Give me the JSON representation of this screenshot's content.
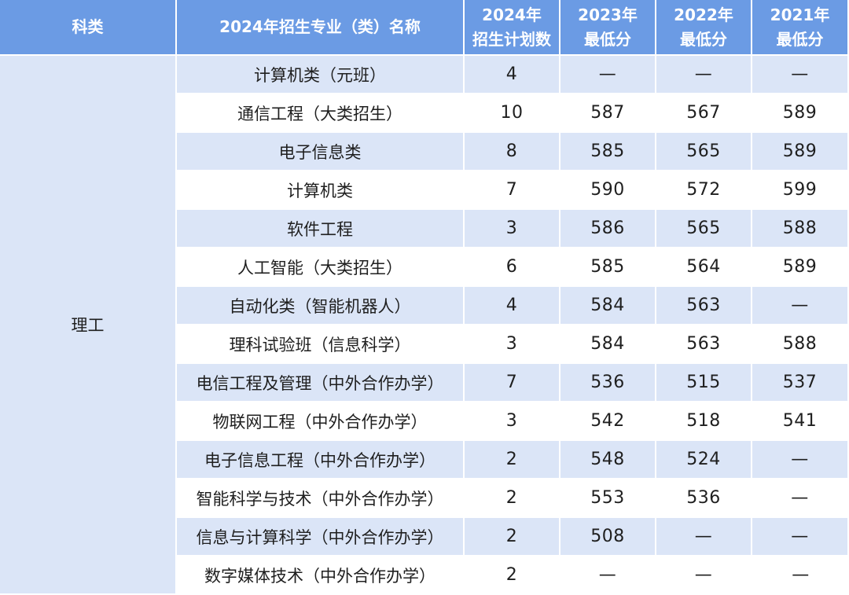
{
  "headers": {
    "category": "科类",
    "major": "2024年招生专业（类）名称",
    "plan_line1": "2024年",
    "plan_line2": "招生计划数",
    "y2023_line1": "2023年",
    "y2023_line2": "最低分",
    "y2022_line1": "2022年",
    "y2022_line2": "最低分",
    "y2021_line1": "2021年",
    "y2021_line2": "最低分"
  },
  "category": "理工",
  "rows": [
    {
      "major": "计算机类（元班）",
      "plan": "4",
      "y2023": "—",
      "y2022": "—",
      "y2021": "—"
    },
    {
      "major": "通信工程（大类招生）",
      "plan": "10",
      "y2023": "587",
      "y2022": "567",
      "y2021": "589"
    },
    {
      "major": "电子信息类",
      "plan": "8",
      "y2023": "585",
      "y2022": "565",
      "y2021": "589"
    },
    {
      "major": "计算机类",
      "plan": "7",
      "y2023": "590",
      "y2022": "572",
      "y2021": "599"
    },
    {
      "major": "软件工程",
      "plan": "3",
      "y2023": "586",
      "y2022": "565",
      "y2021": "588"
    },
    {
      "major": "人工智能（大类招生）",
      "plan": "6",
      "y2023": "585",
      "y2022": "564",
      "y2021": "589"
    },
    {
      "major": "自动化类（智能机器人）",
      "plan": "4",
      "y2023": "584",
      "y2022": "563",
      "y2021": "—"
    },
    {
      "major": "理科试验班（信息科学）",
      "plan": "3",
      "y2023": "584",
      "y2022": "563",
      "y2021": "588"
    },
    {
      "major": "电信工程及管理（中外合作办学）",
      "plan": "7",
      "y2023": "536",
      "y2022": "515",
      "y2021": "537"
    },
    {
      "major": "物联网工程（中外合作办学）",
      "plan": "3",
      "y2023": "542",
      "y2022": "518",
      "y2021": "541"
    },
    {
      "major": "电子信息工程（中外合作办学）",
      "plan": "2",
      "y2023": "548",
      "y2022": "524",
      "y2021": "—"
    },
    {
      "major": "智能科学与技术（中外合作办学）",
      "plan": "2",
      "y2023": "553",
      "y2022": "536",
      "y2021": "—"
    },
    {
      "major": "信息与计算科学（中外合作办学）",
      "plan": "2",
      "y2023": "508",
      "y2022": "—",
      "y2021": "—"
    },
    {
      "major": "数字媒体技术（中外合作办学）",
      "plan": "2",
      "y2023": "—",
      "y2022": "—",
      "y2021": "—"
    }
  ]
}
